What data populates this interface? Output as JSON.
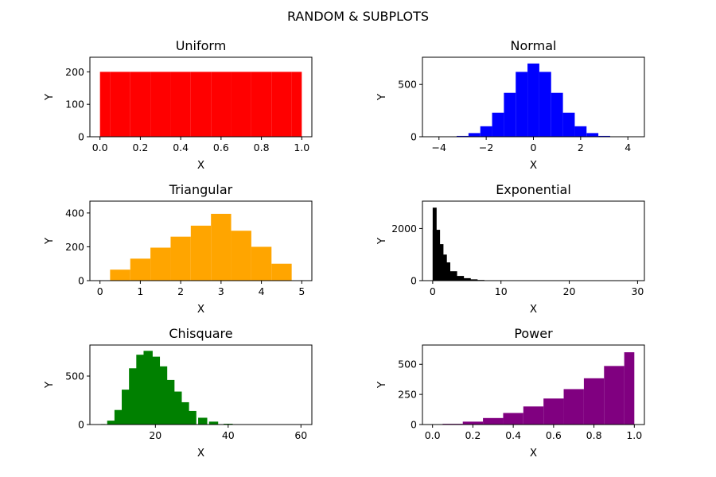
{
  "figure": {
    "title": "RANDOM & SUBPLOTS"
  },
  "chart_data": [
    {
      "type": "bar",
      "title": "Uniform",
      "xlabel": "X",
      "ylabel": "Y",
      "color": "#ff0000",
      "xlim": [
        -0.05,
        1.05
      ],
      "ylim": [
        0,
        245
      ],
      "xticks": [
        0.0,
        0.2,
        0.4,
        0.6,
        0.8,
        1.0
      ],
      "xtick_labels": [
        "0.0",
        "0.2",
        "0.4",
        "0.6",
        "0.8",
        "1.0"
      ],
      "yticks": [
        0,
        100,
        200
      ],
      "ytick_labels": [
        "0",
        "100",
        "200"
      ],
      "x": [
        0.0,
        0.1,
        0.2,
        0.3,
        0.4,
        0.5,
        0.6,
        0.7,
        0.8,
        0.9,
        1.0
      ],
      "values": [
        200,
        200,
        200,
        200,
        200,
        200,
        200,
        200,
        200,
        200,
        200
      ]
    },
    {
      "type": "bar",
      "title": "Normal",
      "xlabel": "X",
      "ylabel": "Y",
      "color": "#0000ff",
      "xlim": [
        -4.7,
        4.7
      ],
      "ylim": [
        0,
        760
      ],
      "xticks": [
        -4,
        -2,
        0,
        2,
        4
      ],
      "xtick_labels": [
        "−4",
        "−2",
        "0",
        "2",
        "4"
      ],
      "yticks": [
        0,
        500
      ],
      "ytick_labels": [
        "0",
        "500"
      ],
      "x": [
        -4,
        -3.5,
        -3,
        -2.5,
        -2,
        -1.5,
        -1,
        -0.5,
        0,
        0.5,
        1,
        1.5,
        2,
        2.5,
        3,
        3.5,
        4
      ],
      "values": [
        0,
        2,
        8,
        35,
        100,
        230,
        420,
        620,
        700,
        620,
        420,
        230,
        100,
        35,
        8,
        2,
        0
      ]
    },
    {
      "type": "bar",
      "title": "Triangular",
      "xlabel": "X",
      "ylabel": "Y",
      "color": "#ffa500",
      "xlim": [
        -0.25,
        5.25
      ],
      "ylim": [
        0,
        470
      ],
      "xticks": [
        0,
        1,
        2,
        3,
        4,
        5
      ],
      "xtick_labels": [
        "0",
        "1",
        "2",
        "3",
        "4",
        "5"
      ],
      "yticks": [
        0,
        200,
        400
      ],
      "ytick_labels": [
        "0",
        "200",
        "400"
      ],
      "x": [
        0,
        0.5,
        1,
        1.5,
        2,
        2.5,
        3,
        3.5,
        4,
        4.5,
        5
      ],
      "values": [
        0,
        65,
        130,
        195,
        260,
        325,
        395,
        295,
        200,
        100,
        0
      ]
    },
    {
      "type": "bar",
      "title": "Exponential",
      "xlabel": "X",
      "ylabel": "Y",
      "color": "#000000",
      "xlim": [
        -1.5,
        31
      ],
      "ylim": [
        0,
        3050
      ],
      "xticks": [
        0,
        10,
        20,
        30
      ],
      "xtick_labels": [
        "0",
        "10",
        "20",
        "30"
      ],
      "yticks": [
        0,
        2000
      ],
      "ytick_labels": [
        "0",
        "2000"
      ],
      "x": [
        0,
        0.5,
        1,
        1.5,
        2,
        3,
        4,
        5,
        6,
        7,
        8,
        10,
        12,
        15
      ],
      "values": [
        2800,
        1950,
        1400,
        1000,
        700,
        360,
        180,
        95,
        50,
        25,
        12,
        3,
        1,
        0
      ]
    },
    {
      "type": "bar",
      "title": "Chisquare",
      "xlabel": "X",
      "ylabel": "Y",
      "color": "#008000",
      "xlim": [
        2,
        63
      ],
      "ylim": [
        0,
        820
      ],
      "xticks": [
        20,
        40,
        60
      ],
      "xtick_labels": [
        "20",
        "40",
        "60"
      ],
      "yticks": [
        0,
        500
      ],
      "ytick_labels": [
        "0",
        "500"
      ],
      "x": [
        5,
        8,
        10,
        12,
        14,
        16,
        18,
        20,
        22,
        24,
        26,
        28,
        30,
        33,
        36,
        40,
        45
      ],
      "values": [
        5,
        40,
        150,
        360,
        580,
        720,
        760,
        700,
        600,
        460,
        340,
        230,
        140,
        70,
        30,
        8,
        1
      ]
    },
    {
      "type": "bar",
      "title": "Power",
      "xlabel": "X",
      "ylabel": "Y",
      "color": "#800080",
      "xlim": [
        -0.05,
        1.05
      ],
      "ylim": [
        0,
        660
      ],
      "xticks": [
        0.0,
        0.2,
        0.4,
        0.6,
        0.8,
        1.0
      ],
      "xtick_labels": [
        "0.0",
        "0.2",
        "0.4",
        "0.6",
        "0.8",
        "1.0"
      ],
      "yticks": [
        0,
        250,
        500
      ],
      "ytick_labels": [
        "0",
        "250",
        "500"
      ],
      "x": [
        0.0,
        0.1,
        0.2,
        0.3,
        0.4,
        0.5,
        0.6,
        0.7,
        0.8,
        0.9,
        1.0
      ],
      "values": [
        0,
        6,
        24,
        54,
        96,
        150,
        216,
        294,
        384,
        486,
        600
      ]
    }
  ]
}
